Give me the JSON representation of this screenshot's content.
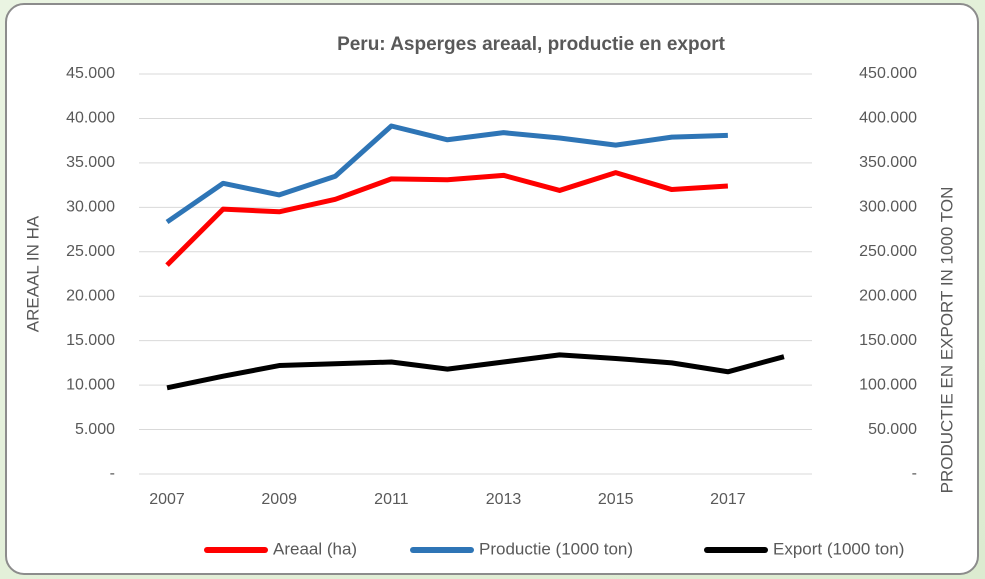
{
  "chart_data": {
    "type": "line",
    "title": "Peru: Asperges areaal, productie en export",
    "ylabel": "AREAAL IN HA",
    "y2label": "PRODUCTIE EN EXPORT IN 1000 TON",
    "x": [
      2007,
      2008,
      2009,
      2010,
      2011,
      2012,
      2013,
      2014,
      2015,
      2016,
      2017,
      2018
    ],
    "xlim": [
      2006.5,
      2018.5
    ],
    "xticks": [
      2007,
      2009,
      2011,
      2013,
      2015,
      2017
    ],
    "ylim": [
      0,
      45000
    ],
    "yticks": [
      {
        "value": 0,
        "label": "-"
      },
      {
        "value": 5000,
        "label": "5.000"
      },
      {
        "value": 10000,
        "label": "10.000"
      },
      {
        "value": 15000,
        "label": "15.000"
      },
      {
        "value": 20000,
        "label": "20.000"
      },
      {
        "value": 25000,
        "label": "25.000"
      },
      {
        "value": 30000,
        "label": "30.000"
      },
      {
        "value": 35000,
        "label": "35.000"
      },
      {
        "value": 40000,
        "label": "40.000"
      },
      {
        "value": 45000,
        "label": "45.000"
      }
    ],
    "y2lim": [
      0,
      450000
    ],
    "y2ticks": [
      {
        "value": 0,
        "label": "-"
      },
      {
        "value": 50000,
        "label": "50.000"
      },
      {
        "value": 100000,
        "label": "100.000"
      },
      {
        "value": 150000,
        "label": "150.000"
      },
      {
        "value": 200000,
        "label": "200.000"
      },
      {
        "value": 250000,
        "label": "250.000"
      },
      {
        "value": 300000,
        "label": "300.000"
      },
      {
        "value": 350000,
        "label": "350.000"
      },
      {
        "value": 400000,
        "label": "400.000"
      },
      {
        "value": 450000,
        "label": "450.000"
      }
    ],
    "grid": true,
    "legend": "bottom",
    "series": [
      {
        "name": "Areaal (ha)",
        "color": "#ff0000",
        "values": [
          23500,
          29800,
          29500,
          30900,
          33200,
          33100,
          33600,
          31900,
          33900,
          32000,
          32400,
          null
        ]
      },
      {
        "name": "Productie (1000 ton)",
        "color": "#2e75b6",
        "axis": "y2",
        "values": [
          283500,
          327000,
          314000,
          335000,
          391500,
          376000,
          384000,
          378000,
          370000,
          379000,
          381000,
          null
        ]
      },
      {
        "name": "Export (1000 ton)",
        "color": "#000000",
        "axis": "y2",
        "values": [
          97000,
          110000,
          122000,
          124000,
          126000,
          118000,
          126000,
          134000,
          130000,
          125000,
          115000,
          132000
        ]
      }
    ]
  }
}
